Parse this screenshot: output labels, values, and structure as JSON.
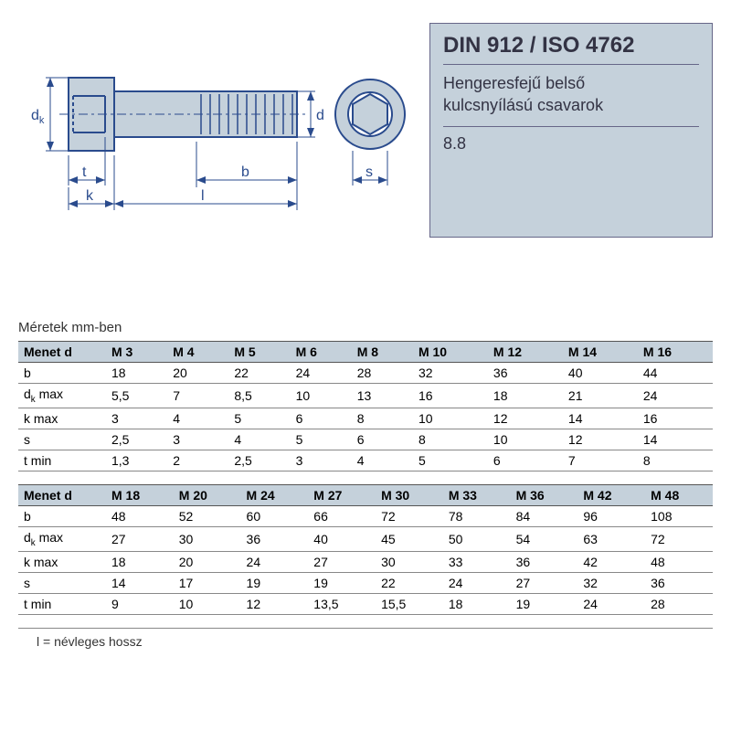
{
  "info": {
    "title": "DIN 912 / ISO 4762",
    "desc_line1": "Hengeresfejű belső",
    "desc_line2": "kulcsnyílású csavarok",
    "grade": "8.8"
  },
  "diagram": {
    "stroke": "#2a4b8d",
    "fill": "#c5d1db",
    "labels": {
      "dk": "d",
      "dk_sub": "k",
      "t": "t",
      "k": "k",
      "l": "l",
      "b": "b",
      "d": "d",
      "s": "s"
    }
  },
  "caption": "Méretek mm-ben",
  "table1": {
    "header": [
      "Menet d",
      "M 3",
      "M 4",
      "M 5",
      "M 6",
      "M 8",
      "M 10",
      "M 12",
      "M 14",
      "M 16"
    ],
    "rows": [
      {
        "label": "b",
        "values": [
          "18",
          "20",
          "22",
          "24",
          "28",
          "32",
          "36",
          "40",
          "44"
        ]
      },
      {
        "label": "dk_max",
        "values": [
          "5,5",
          "7",
          "8,5",
          "10",
          "13",
          "16",
          "18",
          "21",
          "24"
        ]
      },
      {
        "label": "k max",
        "values": [
          "3",
          "4",
          "5",
          "6",
          "8",
          "10",
          "12",
          "14",
          "16"
        ]
      },
      {
        "label": "s",
        "values": [
          "2,5",
          "3",
          "4",
          "5",
          "6",
          "8",
          "10",
          "12",
          "14"
        ]
      },
      {
        "label": "t min",
        "values": [
          "1,3",
          "2",
          "2,5",
          "3",
          "4",
          "5",
          "6",
          "7",
          "8"
        ]
      }
    ]
  },
  "table2": {
    "header": [
      "Menet d",
      "M 18",
      "M 20",
      "M 24",
      "M 27",
      "M 30",
      "M 33",
      "M 36",
      "M 42",
      "M 48"
    ],
    "rows": [
      {
        "label": "b",
        "values": [
          "48",
          "52",
          "60",
          "66",
          "72",
          "78",
          "84",
          "96",
          "108"
        ]
      },
      {
        "label": "dk_max",
        "values": [
          "27",
          "30",
          "36",
          "40",
          "45",
          "50",
          "54",
          "63",
          "72"
        ]
      },
      {
        "label": "k max",
        "values": [
          "18",
          "20",
          "24",
          "27",
          "30",
          "33",
          "36",
          "42",
          "48"
        ]
      },
      {
        "label": "s",
        "values": [
          "14",
          "17",
          "19",
          "19",
          "22",
          "24",
          "27",
          "32",
          "36"
        ]
      },
      {
        "label": "t min",
        "values": [
          "9",
          "10",
          "12",
          "13,5",
          "15,5",
          "18",
          "19",
          "24",
          "28"
        ]
      }
    ]
  },
  "footnote": "l = névleges hossz",
  "style": {
    "page_bg": "#ffffff",
    "box_bg": "#c5d1db",
    "box_border": "#668",
    "table_header_bg": "#c5d1db",
    "rule_color": "#888",
    "rule_strong": "#555",
    "text_color": "#333",
    "font_size_title": 24,
    "font_size_body": 14
  }
}
